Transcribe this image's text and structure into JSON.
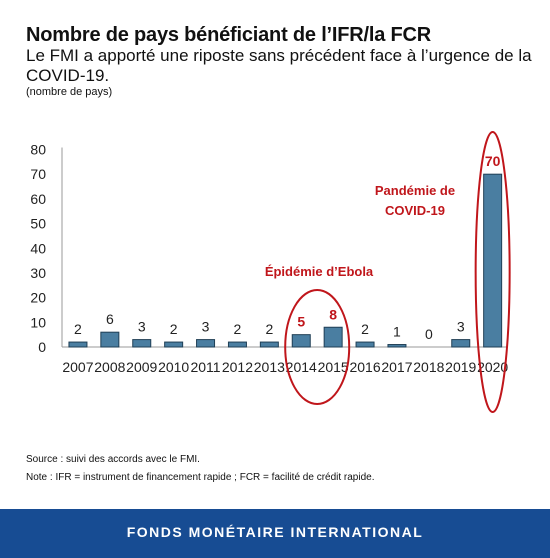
{
  "header": {
    "title": "Nombre de pays bénéficiant de l’IFR/la FCR",
    "subtitle": "Le FMI a apporté une riposte sans précédent face à l’urgence de la COVID-19.",
    "units": "(nombre de pays)"
  },
  "chart_data": {
    "type": "bar",
    "categories": [
      "2007",
      "2008",
      "2009",
      "2010",
      "2011",
      "2012",
      "2013",
      "2014",
      "2015",
      "2016",
      "2017",
      "2018",
      "2019",
      "2020"
    ],
    "values": [
      2,
      6,
      3,
      2,
      3,
      2,
      2,
      5,
      8,
      2,
      1,
      0,
      3,
      70
    ],
    "ylim": [
      0,
      80
    ],
    "yticks": [
      0,
      10,
      20,
      30,
      40,
      50,
      60,
      70,
      80
    ],
    "highlighted_categories": [
      "2014",
      "2015",
      "2020"
    ],
    "annotations": [
      {
        "text": "Épidémie d’Ebola",
        "categories": [
          "2014",
          "2015"
        ]
      },
      {
        "text": "Pandémie de COVID-19",
        "categories": [
          "2020"
        ]
      }
    ],
    "colors": {
      "bar": "#4a7ea1",
      "bar_edge": "#1f3f55",
      "highlight": "#c0161b"
    }
  },
  "notes": {
    "source": "Source : suivi des accords avec le FMI.",
    "note": "Note : IFR = instrument de financement rapide ; FCR = facilité de crédit rapide."
  },
  "footer": {
    "text": "FONDS MONÉTAIRE INTERNATIONAL",
    "color": "#174c93"
  }
}
